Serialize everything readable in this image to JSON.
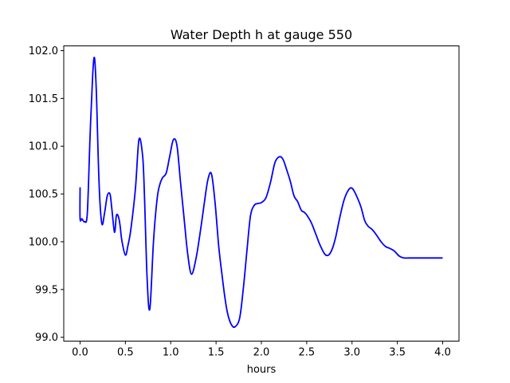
{
  "chart_data": {
    "type": "line",
    "title": "Water Depth h at gauge 550",
    "xlabel": "hours",
    "ylabel": "",
    "xlim": [
      -0.18,
      4.18
    ],
    "ylim": [
      98.96,
      102.05
    ],
    "xticks": [
      0.0,
      0.5,
      1.0,
      1.5,
      2.0,
      2.5,
      3.0,
      3.5,
      4.0
    ],
    "xtick_labels": [
      "0.0",
      "0.5",
      "1.0",
      "1.5",
      "2.0",
      "2.5",
      "3.0",
      "3.5",
      "4.0"
    ],
    "yticks": [
      99.0,
      99.5,
      100.0,
      100.5,
      101.0,
      101.5,
      102.0
    ],
    "ytick_labels": [
      "99.0",
      "99.5",
      "100.0",
      "100.5",
      "101.0",
      "101.5",
      "102.0"
    ],
    "grid": false,
    "series": [
      {
        "color": "#0000ff",
        "x": [
          0.0,
          0.0,
          0.02,
          0.05,
          0.08,
          0.11,
          0.14,
          0.16,
          0.18,
          0.21,
          0.24,
          0.27,
          0.3,
          0.33,
          0.35,
          0.38,
          0.4,
          0.42,
          0.44,
          0.46,
          0.5,
          0.53,
          0.56,
          0.61,
          0.65,
          0.69,
          0.71,
          0.74,
          0.77,
          0.81,
          0.85,
          0.88,
          0.91,
          0.95,
          0.99,
          1.03,
          1.07,
          1.11,
          1.15,
          1.19,
          1.23,
          1.28,
          1.33,
          1.37,
          1.41,
          1.45,
          1.49,
          1.53,
          1.57,
          1.6,
          1.63,
          1.67,
          1.71,
          1.76,
          1.8,
          1.84,
          1.88,
          1.92,
          1.96,
          2.0,
          2.05,
          2.1,
          2.15,
          2.2,
          2.24,
          2.28,
          2.32,
          2.36,
          2.4,
          2.44,
          2.47,
          2.5,
          2.55,
          2.6,
          2.65,
          2.7,
          2.74,
          2.78,
          2.82,
          2.86,
          2.91,
          2.96,
          3.0,
          3.05,
          3.1,
          3.14,
          3.18,
          3.22,
          3.27,
          3.32,
          3.37,
          3.42,
          3.47,
          3.52,
          3.57,
          3.62,
          3.67,
          3.72,
          3.77,
          3.82,
          3.87,
          3.92,
          3.97,
          4.0
        ],
        "values": [
          100.57,
          100.24,
          100.24,
          100.21,
          100.3,
          101.1,
          101.76,
          101.92,
          101.55,
          100.6,
          100.19,
          100.3,
          100.48,
          100.5,
          100.35,
          100.1,
          100.27,
          100.27,
          100.18,
          100.02,
          99.86,
          99.97,
          100.13,
          100.55,
          101.07,
          100.9,
          100.5,
          99.6,
          99.3,
          100.0,
          100.45,
          100.6,
          100.67,
          100.72,
          100.9,
          101.07,
          101.0,
          100.6,
          100.22,
          99.85,
          99.66,
          99.83,
          100.13,
          100.4,
          100.65,
          100.71,
          100.4,
          99.95,
          99.62,
          99.4,
          99.24,
          99.13,
          99.11,
          99.2,
          99.5,
          99.9,
          100.27,
          100.38,
          100.4,
          100.41,
          100.46,
          100.62,
          100.83,
          100.89,
          100.86,
          100.75,
          100.63,
          100.48,
          100.42,
          100.33,
          100.31,
          100.28,
          100.2,
          100.08,
          99.96,
          99.87,
          99.86,
          99.92,
          100.05,
          100.23,
          100.43,
          100.54,
          100.56,
          100.48,
          100.36,
          100.22,
          100.16,
          100.13,
          100.07,
          100.0,
          99.95,
          99.93,
          99.9,
          99.85,
          99.83,
          99.83,
          99.83,
          99.83,
          99.83,
          99.83,
          99.83,
          99.83,
          99.83,
          99.83
        ]
      }
    ]
  }
}
